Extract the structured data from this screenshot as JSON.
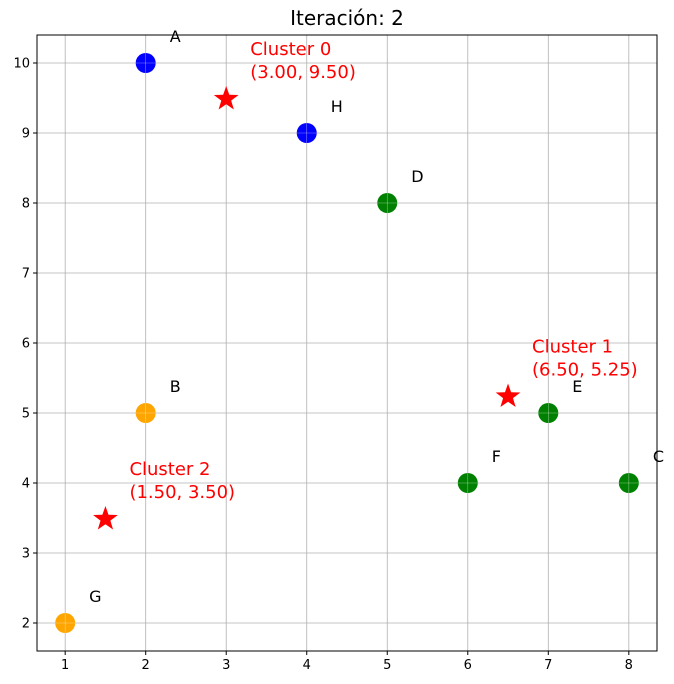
{
  "chart_data": {
    "type": "scatter",
    "title": "Iteración: 2",
    "xlabel": "",
    "ylabel": "",
    "xlim": [
      0.65,
      8.35
    ],
    "ylim": [
      1.6,
      10.4
    ],
    "xticks": [
      1,
      2,
      3,
      4,
      5,
      6,
      7,
      8
    ],
    "yticks": [
      2,
      3,
      4,
      5,
      6,
      7,
      8,
      9,
      10
    ],
    "grid": true,
    "points": [
      {
        "label": "A",
        "x": 2,
        "y": 10,
        "cluster": 0
      },
      {
        "label": "B",
        "x": 2,
        "y": 5,
        "cluster": 2
      },
      {
        "label": "C",
        "x": 8,
        "y": 4,
        "cluster": 1
      },
      {
        "label": "D",
        "x": 5,
        "y": 8,
        "cluster": 1
      },
      {
        "label": "E",
        "x": 7,
        "y": 5,
        "cluster": 1
      },
      {
        "label": "F",
        "x": 6,
        "y": 4,
        "cluster": 1
      },
      {
        "label": "G",
        "x": 1,
        "y": 2,
        "cluster": 2
      },
      {
        "label": "H",
        "x": 4,
        "y": 9,
        "cluster": 0
      }
    ],
    "centroids": [
      {
        "id": 0,
        "name": "Cluster 0",
        "coords": "(3.00, 9.50)",
        "x": 3.0,
        "y": 9.5
      },
      {
        "id": 1,
        "name": "Cluster 1",
        "coords": "(6.50, 5.25)",
        "x": 6.5,
        "y": 5.25
      },
      {
        "id": 2,
        "name": "Cluster 2",
        "coords": "(1.50, 3.50)",
        "x": 1.5,
        "y": 3.5
      }
    ],
    "cluster_colors": {
      "0": "#0000ff",
      "1": "#008000",
      "2": "#ffa500"
    },
    "centroid_color": "#ff0000"
  }
}
